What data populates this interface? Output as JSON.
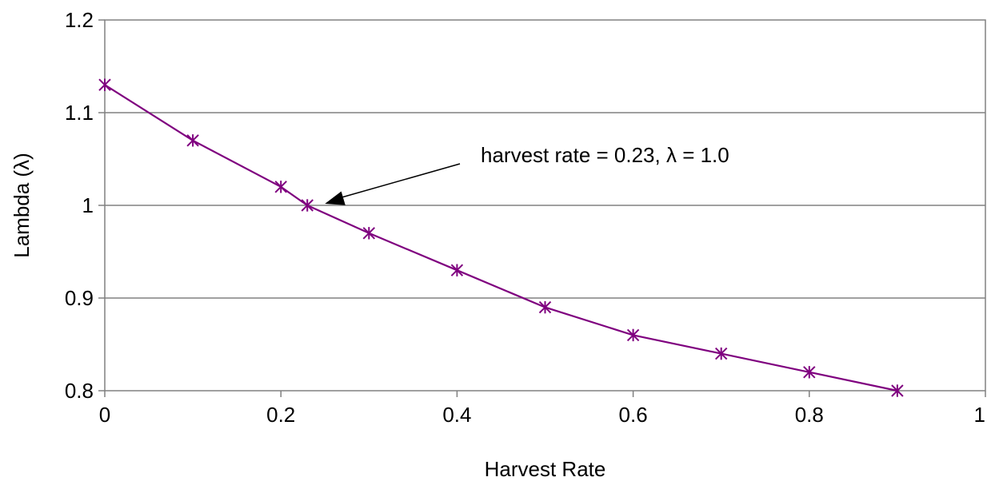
{
  "chart_data": {
    "type": "line",
    "title": "",
    "xlabel": "Harvest Rate",
    "ylabel": "Lambda (λ)",
    "xlim": [
      0,
      1
    ],
    "ylim": [
      0.8,
      1.2
    ],
    "x_ticks": [
      0,
      0.2,
      0.4,
      0.6,
      0.8,
      1
    ],
    "x_tick_labels": [
      "0",
      "0.2",
      "0.4",
      "0.6",
      "0.8",
      "1"
    ],
    "y_ticks": [
      0.8,
      0.9,
      1.0,
      1.1,
      1.2
    ],
    "y_tick_labels": [
      "0.8",
      "0.9",
      "1",
      "1.1",
      "1.2"
    ],
    "grid": "horizontal",
    "legend": "none",
    "series": [
      {
        "color": "#7F007F",
        "marker": "asterisk",
        "points": [
          {
            "x": 0,
            "y": 1.13
          },
          {
            "x": 0.1,
            "y": 1.07
          },
          {
            "x": 0.2,
            "y": 1.02
          },
          {
            "x": 0.23,
            "y": 1.0
          },
          {
            "x": 0.3,
            "y": 0.97
          },
          {
            "x": 0.4,
            "y": 0.93
          },
          {
            "x": 0.5,
            "y": 0.89
          },
          {
            "x": 0.6,
            "y": 0.86
          },
          {
            "x": 0.7,
            "y": 0.84
          },
          {
            "x": 0.8,
            "y": 0.82
          },
          {
            "x": 0.9,
            "y": 0.8
          }
        ]
      }
    ],
    "annotations": [
      {
        "text": "harvest rate = 0.23, λ = 1.0",
        "target": {
          "x": 0.23,
          "y": 1.0
        }
      }
    ]
  }
}
